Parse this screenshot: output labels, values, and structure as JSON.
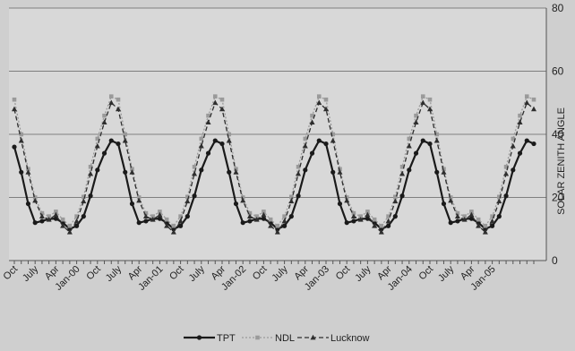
{
  "colors": {
    "page_background": "#cfcfcf",
    "plot_background": "#d8d8d8",
    "gridline": "#7f7f7f",
    "axis": "#555555",
    "tpt": "#1a1a1a",
    "ndl": "#9a9a9a",
    "lucknow": "#2e2e2e",
    "text": "#222222"
  },
  "chart_data": {
    "type": "line",
    "title": "",
    "xlabel": "",
    "ylabel": "SOLAR ZENITH ANGLE",
    "y_axis_side": "right",
    "ylim": [
      0,
      80
    ],
    "yticks": [
      0,
      20,
      40,
      60,
      80
    ],
    "grid": "horizontal",
    "legend_position": "bottom",
    "x_tick_labels": [
      "Oct",
      "July",
      "Apr",
      "Jan-00",
      "Oct",
      "July",
      "Apr",
      "Jan-01",
      "Oct",
      "July",
      "Apr",
      "Jan-02",
      "Oct",
      "July",
      "Apr",
      "Jan-03",
      "Oct",
      "July",
      "Apr",
      "Jan-04",
      "Oct",
      "July",
      "Apr",
      "Jan-05"
    ],
    "x_count": 76,
    "series": [
      {
        "name": "TPT",
        "marker": "circle",
        "line_style": "solid",
        "values": [
          36,
          28,
          18,
          12,
          12.5,
          13.2,
          13.3,
          12,
          10,
          11,
          14,
          20.5,
          28.7,
          34,
          38,
          37,
          28,
          18,
          12,
          12.5,
          13.2,
          13.3,
          12,
          10,
          11,
          14,
          20.5,
          28.7,
          34,
          38,
          37,
          28,
          18,
          12,
          12.5,
          13.2,
          13.3,
          12,
          10,
          11,
          14,
          20.5,
          28.7,
          34,
          38,
          37,
          28,
          18,
          12,
          12.5,
          13.2,
          13.3,
          12,
          10,
          11,
          14,
          20.5,
          28.7,
          34,
          38,
          37,
          28,
          18,
          12,
          12.5,
          13.2,
          13.3,
          12,
          10,
          11,
          14,
          20.5,
          28.7,
          34,
          38,
          37
        ]
      },
      {
        "name": "NDL",
        "marker": "square",
        "line_style": "dotted",
        "values": [
          51,
          40,
          29,
          20,
          15,
          14,
          15.5,
          13,
          11,
          14,
          20.2,
          29.7,
          38.6,
          45.9,
          52,
          51,
          40,
          29,
          20,
          15,
          14,
          15.5,
          13,
          11,
          14,
          20.2,
          29.7,
          38.6,
          45.9,
          52,
          51,
          40,
          29,
          20,
          15,
          14,
          15.5,
          13,
          11,
          14,
          20.2,
          29.7,
          38.6,
          45.9,
          52,
          51,
          40,
          29,
          20,
          15,
          14,
          15.5,
          13,
          11,
          14,
          20.2,
          29.7,
          38.6,
          45.9,
          52,
          51,
          40,
          29,
          20,
          15,
          14,
          15.5,
          13,
          11,
          14,
          20.2,
          29.7,
          38.6,
          45.9,
          52,
          51
        ]
      },
      {
        "name": "Lucknow",
        "marker": "triangle",
        "line_style": "dashed",
        "values": [
          48,
          38,
          28,
          19,
          14,
          13,
          14.5,
          11,
          9,
          12.5,
          18.8,
          27.5,
          36.3,
          43.8,
          50,
          48,
          38,
          28,
          19,
          14,
          13,
          14.5,
          11,
          9,
          12.5,
          18.8,
          27.5,
          36.3,
          43.8,
          50,
          48,
          38,
          28,
          19,
          14,
          13,
          14.5,
          11,
          9,
          12.5,
          18.8,
          27.5,
          36.3,
          43.8,
          50,
          48,
          38,
          28,
          19,
          14,
          13,
          14.5,
          11,
          9,
          12.5,
          18.8,
          27.5,
          36.3,
          43.8,
          50,
          48,
          38,
          28,
          19,
          14,
          13,
          14.5,
          11,
          9,
          12.5,
          18.8,
          27.5,
          36.3,
          43.8,
          50,
          48
        ]
      }
    ]
  }
}
